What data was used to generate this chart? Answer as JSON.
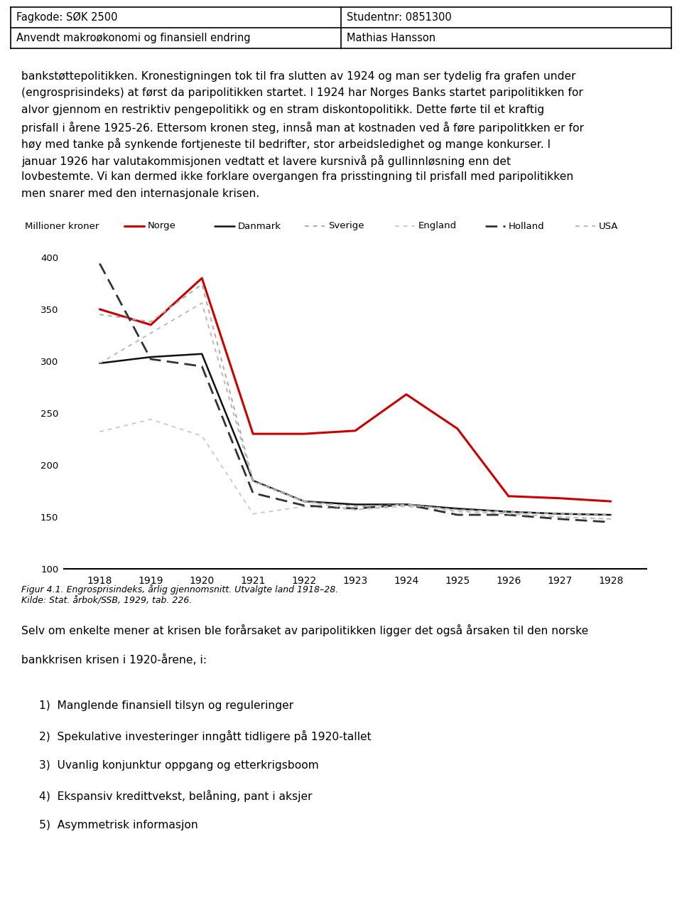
{
  "header_left_top": "Fagkode: SØK 2500",
  "header_left_bot": "Anvendt makroøkonomi og finansiell endring",
  "header_right_top": "Studentnr: 0851300",
  "header_right_bot": "Mathias Hansson",
  "para1_lines": [
    "bankstøttepolitikken. Kronestigningen tok til fra slutten av 1924 og man ser tydelig fra grafen under",
    "(engrosprisindeks) at først da paripolitikken startet. I 1924 har Norges Banks startet paripolitikken for",
    "alvor gjennom en restriktiv pengepolitikk og en stram diskontopolitikk. Dette førte til et kraftig",
    "prisfall i årene 1925-26. Ettersom kronen steg, innså man at kostnaden ved å føre paripolitkken er for",
    "høy med tanke på synkende fortjeneste til bedrifter, stor arbeidsledighet og mange konkurser. I",
    "januar 1926 har valutakommisjonen vedtatt et lavere kursnivå på gullinnløsning enn det",
    "lovbestemte. Vi kan dermed ikke forklare overgangen fra prisstingning til prisfall med paripolitikken",
    "men snarer med den internasjonale krisen."
  ],
  "ylabel": "Millioner kroner",
  "years": [
    1918,
    1919,
    1920,
    1921,
    1922,
    1923,
    1924,
    1925,
    1926,
    1927,
    1928
  ],
  "Norge": [
    350,
    335,
    380,
    230,
    230,
    233,
    268,
    235,
    170,
    168,
    165
  ],
  "Danmark": [
    298,
    304,
    307,
    185,
    165,
    162,
    162,
    158,
    155,
    153,
    152
  ],
  "Sverige": [
    345,
    338,
    374,
    185,
    165,
    160,
    162,
    157,
    155,
    153,
    152
  ],
  "England": [
    232,
    244,
    228,
    153,
    160,
    157,
    160,
    155,
    153,
    150,
    148
  ],
  "Holland": [
    394,
    302,
    295,
    173,
    161,
    158,
    162,
    152,
    152,
    148,
    145
  ],
  "USA": [
    298,
    327,
    356,
    184,
    165,
    157,
    162,
    156,
    153,
    150,
    148
  ],
  "fig_caption_line1": "Figur 4.1. Engrosprisindeks, årlig gjennomsnitt. Utvalgte land 1918–28.",
  "fig_caption_line2": "Kilde: Stat. årbok/SSB, 1929, tab. 226.",
  "para2_lines": [
    "Selv om enkelte mener at krisen ble forårsaket av paripolitikken ligger det også årsaken til den norske",
    "bankkrisen krisen i 1920-årene, i:"
  ],
  "list_items": [
    "Manglende finansiell tilsyn og reguleringer",
    "Spekulative investeringer inngått tidligere på 1920-tallet",
    "Uvanlig konjunktur oppgang og etterkrigsboom",
    "Ekspansiv kredittvekst, belåning, pant i aksjer",
    "Asymmetrisk informasjon"
  ],
  "ylim": [
    100,
    415
  ],
  "yticks": [
    100,
    150,
    200,
    250,
    300,
    350,
    400
  ],
  "bg_color": "#ffffff",
  "text_color": "#000000",
  "colors": {
    "Norge": "#cc0000",
    "Danmark": "#111111",
    "Sverige": "#aaaaaa",
    "England": "#cccccc",
    "Holland": "#333333",
    "USA": "#bbbbbb"
  },
  "linewidths": {
    "Norge": 2.2,
    "Danmark": 1.8,
    "Sverige": 1.4,
    "England": 1.4,
    "Holland": 2.0,
    "USA": 1.4
  }
}
